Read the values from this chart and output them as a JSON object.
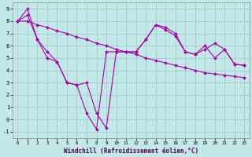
{
  "xlabel": "Windchill (Refroidissement éolien,°C)",
  "background_color": "#c2e8e8",
  "grid_color": "#a8d0d0",
  "line_color": "#aa00aa",
  "xlim": [
    -0.5,
    23.5
  ],
  "ylim": [
    -1.5,
    9.5
  ],
  "xticks": [
    0,
    1,
    2,
    3,
    4,
    5,
    6,
    7,
    8,
    9,
    10,
    11,
    12,
    13,
    14,
    15,
    16,
    17,
    18,
    19,
    20,
    21,
    22,
    23
  ],
  "yticks": [
    -1,
    0,
    1,
    2,
    3,
    4,
    5,
    6,
    7,
    8,
    9
  ],
  "line1_x": [
    0,
    1,
    2,
    3,
    4,
    5,
    6,
    7,
    8,
    9,
    10,
    11,
    12,
    13,
    14,
    15,
    16,
    17,
    18,
    19,
    20,
    21,
    22,
    23
  ],
  "line1_y": [
    8.0,
    9.0,
    6.5,
    5.0,
    4.7,
    3.0,
    2.8,
    3.0,
    0.5,
    -0.7,
    5.5,
    5.5,
    5.5,
    6.5,
    7.7,
    7.3,
    6.8,
    5.5,
    5.3,
    6.0,
    5.0,
    5.7,
    4.5,
    4.4
  ],
  "line2_x": [
    0,
    1,
    2,
    3,
    4,
    5,
    6,
    7,
    8,
    9,
    10,
    11,
    12,
    13,
    14,
    15,
    16,
    17,
    18,
    19,
    20,
    21,
    22,
    23
  ],
  "line2_y": [
    8.0,
    8.0,
    7.7,
    7.5,
    7.2,
    7.0,
    6.7,
    6.5,
    6.2,
    6.0,
    5.7,
    5.5,
    5.3,
    5.0,
    4.8,
    4.6,
    4.4,
    4.2,
    4.0,
    3.8,
    3.7,
    3.6,
    3.5,
    3.4
  ],
  "line3_x": [
    0,
    1,
    2,
    3,
    4,
    5,
    6,
    7,
    8,
    9,
    10,
    11,
    12,
    13,
    14,
    15,
    16,
    17,
    18,
    19,
    20,
    21,
    22,
    23
  ],
  "line3_y": [
    8.0,
    8.5,
    6.5,
    5.5,
    4.7,
    3.0,
    2.8,
    0.5,
    -0.8,
    5.5,
    5.5,
    5.5,
    5.5,
    6.5,
    7.7,
    7.5,
    7.0,
    5.5,
    5.3,
    5.7,
    6.2,
    5.7,
    4.5,
    4.4
  ]
}
